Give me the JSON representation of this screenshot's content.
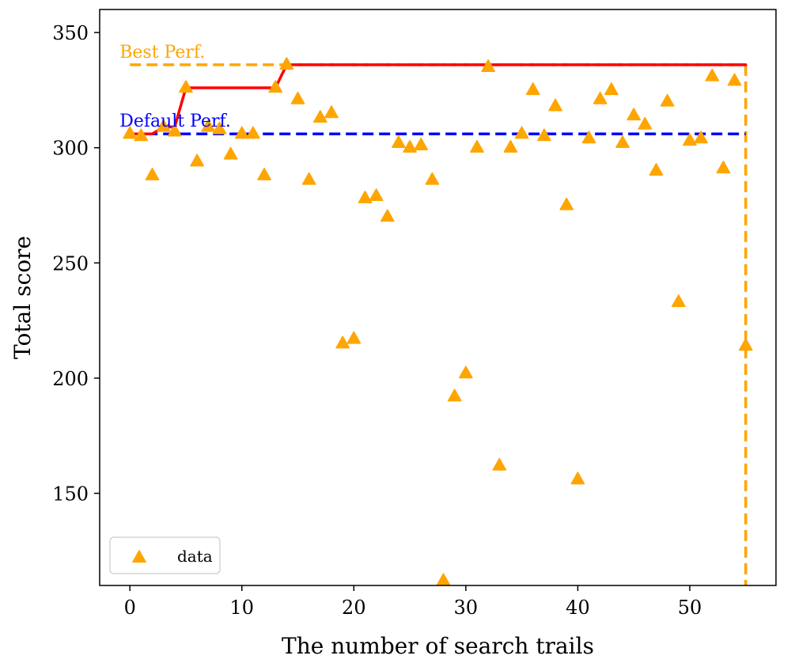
{
  "chart_data": {
    "type": "scatter",
    "xlabel": "The number of search trails",
    "ylabel": "Total score",
    "xlim": [
      -2.7,
      57.7
    ],
    "ylim": [
      110,
      360
    ],
    "xticks": [
      0,
      10,
      20,
      30,
      40,
      50
    ],
    "yticks": [
      150,
      200,
      250,
      300,
      350
    ],
    "grid": false,
    "legend": {
      "position": "bottom-left",
      "entries": [
        "data"
      ]
    },
    "series": [
      {
        "name": "data",
        "marker": "triangle",
        "color": "#FFA500",
        "x": [
          0,
          1,
          2,
          3,
          4,
          5,
          6,
          7,
          8,
          9,
          10,
          11,
          12,
          13,
          14,
          15,
          16,
          17,
          18,
          19,
          20,
          21,
          22,
          23,
          24,
          25,
          26,
          27,
          28,
          29,
          30,
          31,
          32,
          33,
          34,
          35,
          36,
          37,
          38,
          39,
          40,
          41,
          42,
          43,
          44,
          45,
          46,
          47,
          48,
          49,
          50,
          51,
          52,
          53,
          54,
          55
        ],
        "y": [
          306,
          305,
          288,
          309,
          307,
          326,
          294,
          309,
          308,
          297,
          306,
          306,
          288,
          326,
          336,
          321,
          286,
          313,
          315,
          215,
          217,
          278,
          279,
          270,
          302,
          300,
          301,
          286,
          112,
          192,
          202,
          300,
          335,
          162,
          300,
          306,
          325,
          305,
          318,
          275,
          156,
          304,
          321,
          325,
          302,
          314,
          310,
          290,
          320,
          233,
          303,
          304,
          331,
          291,
          329,
          214
        ]
      }
    ],
    "best_so_far": {
      "color": "#FF0000",
      "x": [
        0,
        1,
        2,
        3,
        4,
        5,
        6,
        7,
        8,
        9,
        10,
        11,
        12,
        13,
        14,
        55
      ],
      "y": [
        306,
        306,
        306,
        309,
        309,
        326,
        326,
        326,
        326,
        326,
        326,
        326,
        326,
        326,
        336,
        336
      ]
    },
    "reference_lines": [
      {
        "label": "Best Perf.",
        "value": 336,
        "color": "#FFA500",
        "x_start": 0,
        "x_end": 55,
        "vertical_at": 55
      },
      {
        "label": "Default Perf.",
        "value": 306,
        "color": "#0000FF",
        "x_start": 0,
        "x_end": 55
      }
    ]
  }
}
